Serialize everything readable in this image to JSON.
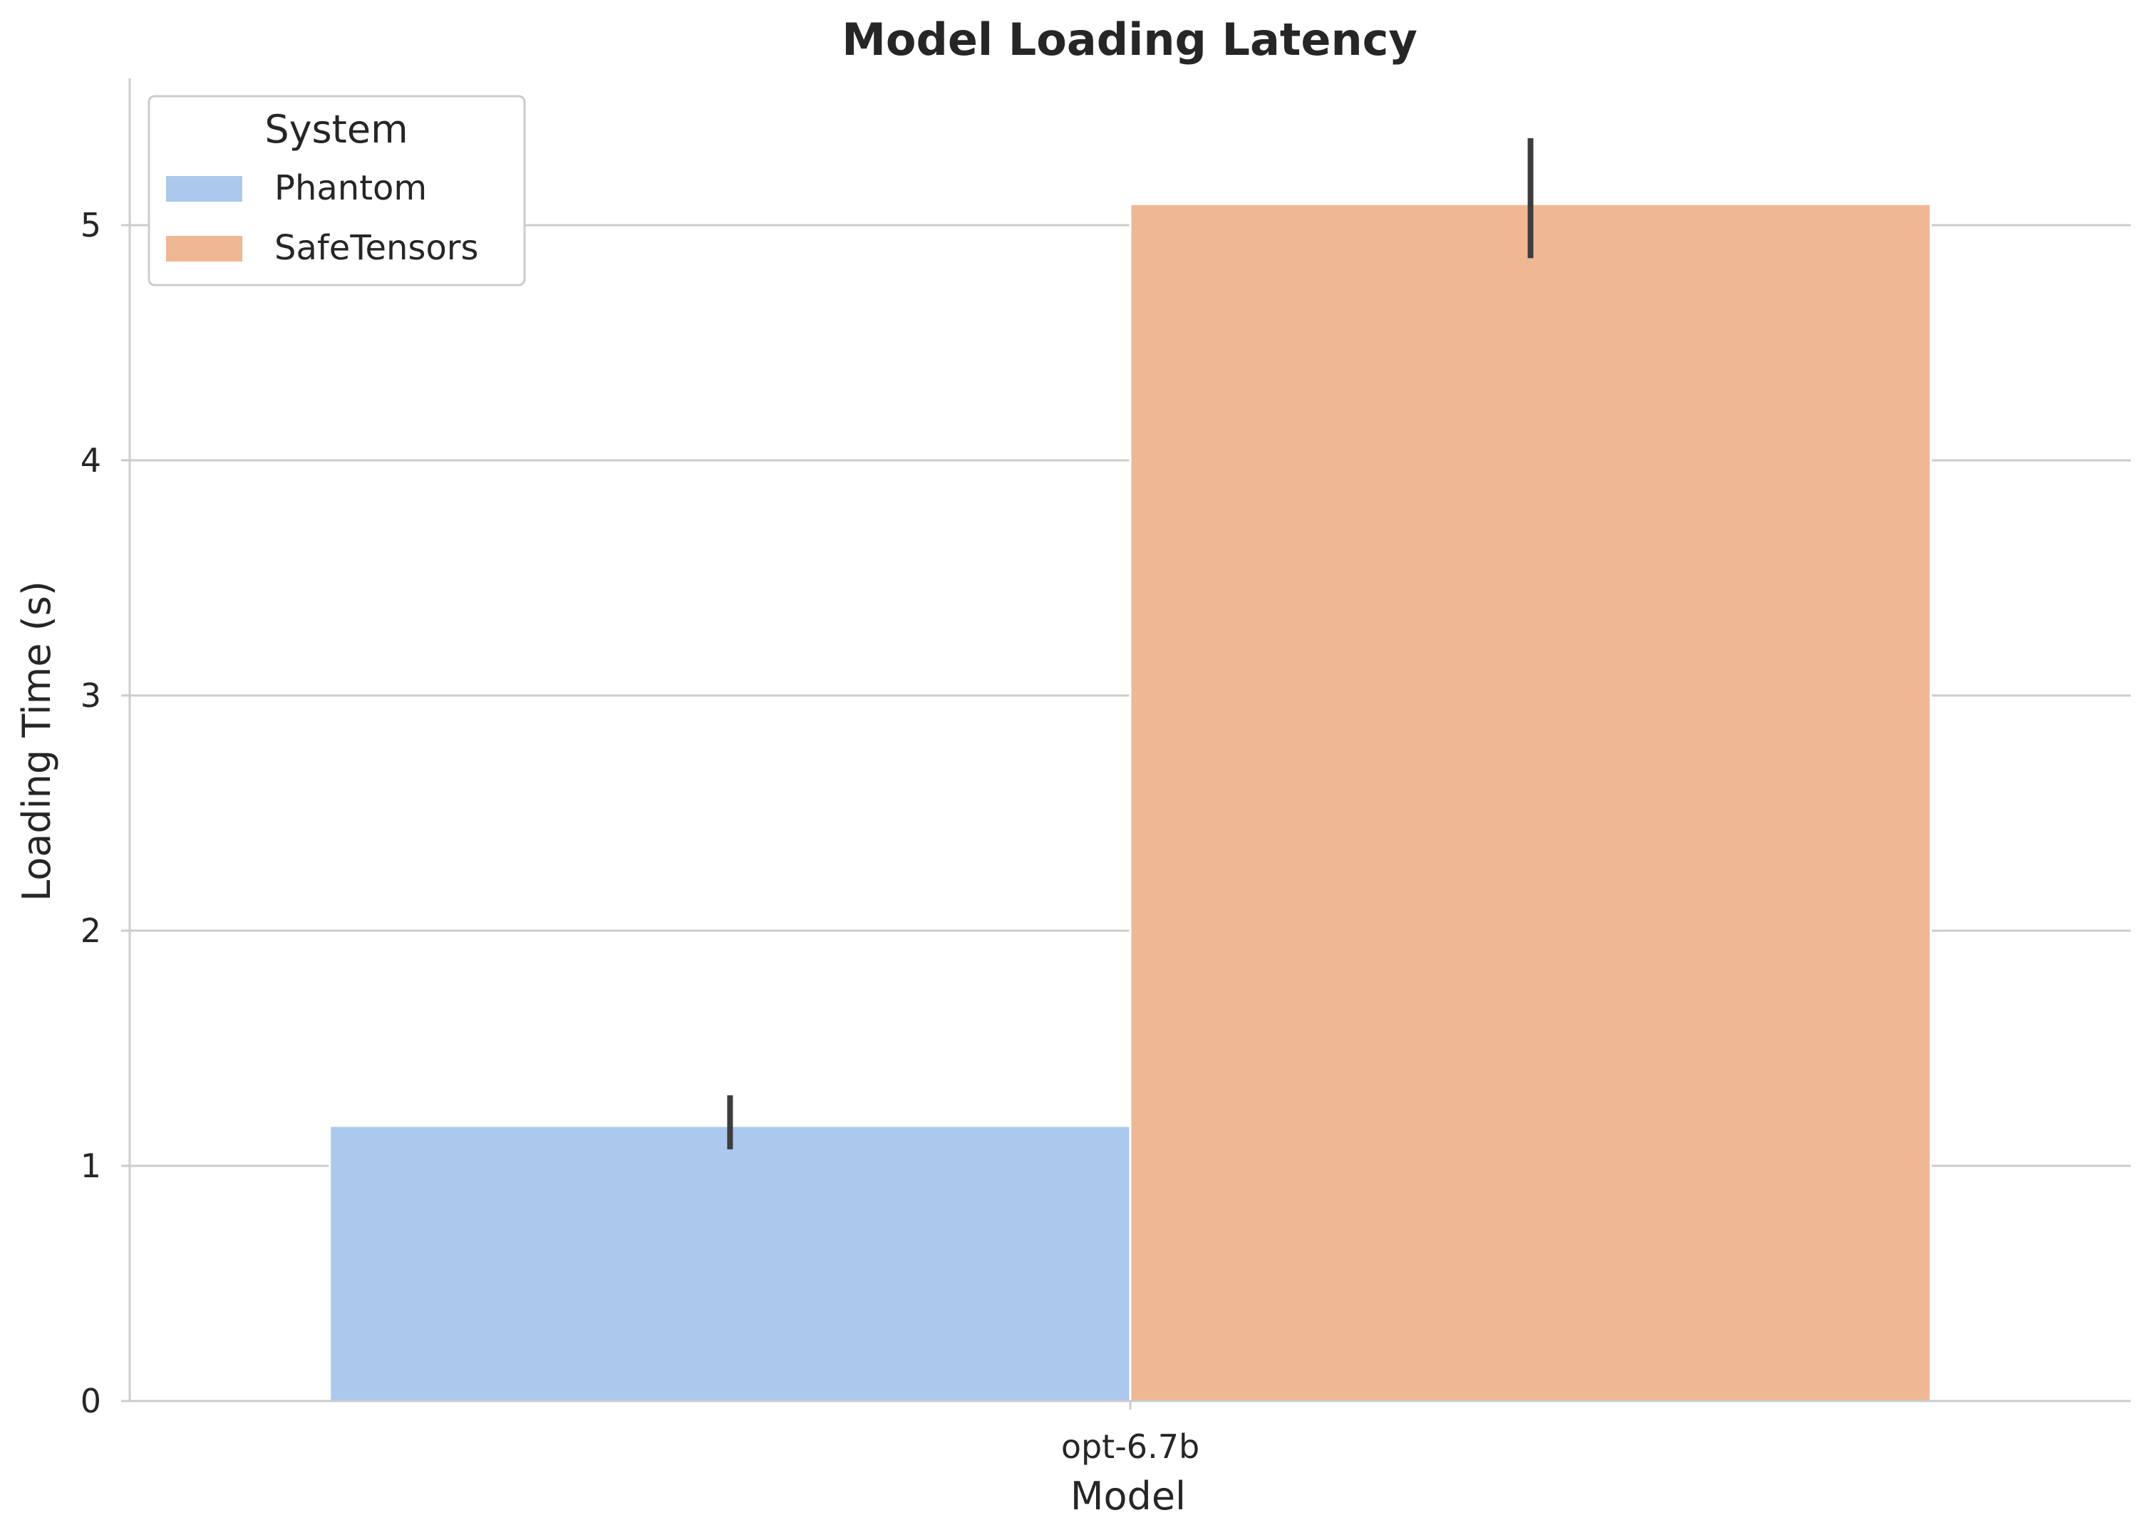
{
  "chart_data": {
    "type": "bar",
    "title": "Model Loading Latency",
    "xlabel": "Model",
    "ylabel": "Loading Time (s)",
    "categories": [
      "opt-6.7b"
    ],
    "series": [
      {
        "name": "Phantom",
        "values": [
          1.17
        ],
        "error": [
          [
            1.07,
            1.3
          ]
        ],
        "color": "#abc9ed"
      },
      {
        "name": "SafeTensors",
        "values": [
          5.09
        ],
        "error": [
          [
            4.86,
            5.37
          ]
        ],
        "color": "#f0b793"
      }
    ],
    "ylim": [
      0,
      5.55
    ],
    "yticks": [
      "0",
      "1",
      "2",
      "3",
      "4",
      "5"
    ],
    "grid": "horizontal",
    "legend": {
      "title": "System",
      "position": "top-left"
    },
    "colors": {
      "grid": "#cccccc",
      "errorbar": "#3d3d3d",
      "text": "#262626"
    }
  }
}
